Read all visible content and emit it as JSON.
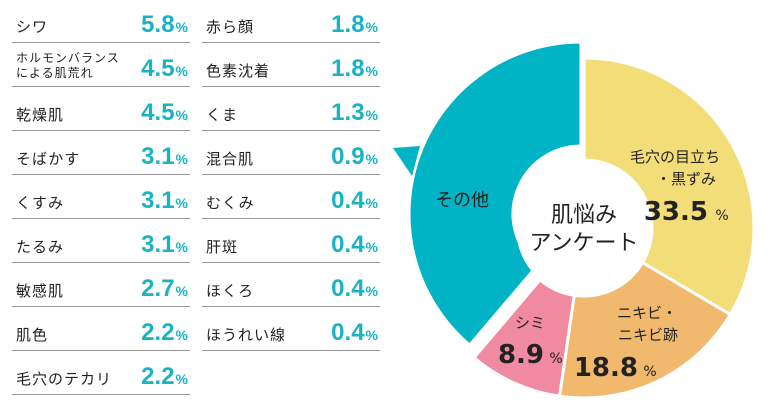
{
  "left_list": [
    {
      "label": "シワ",
      "value": "5.8",
      "unit": "%"
    },
    {
      "label": "ホルモンバランスによる肌荒れ",
      "line1": "ホルモンバランス",
      "line2": "による肌荒れ",
      "value": "4.5",
      "unit": "%"
    },
    {
      "label": "乾燥肌",
      "value": "4.5",
      "unit": "%"
    },
    {
      "label": "そばかす",
      "value": "3.1",
      "unit": "%"
    },
    {
      "label": "くすみ",
      "value": "3.1",
      "unit": "%"
    },
    {
      "label": "たるみ",
      "value": "3.1",
      "unit": "%"
    },
    {
      "label": "敏感肌",
      "value": "2.7",
      "unit": "%"
    },
    {
      "label": "肌色",
      "value": "2.2",
      "unit": "%"
    },
    {
      "label": "毛穴のテカリ",
      "value": "2.2",
      "unit": "%"
    }
  ],
  "right_list": [
    {
      "label": "赤ら顔",
      "value": "1.8",
      "unit": "%"
    },
    {
      "label": "色素沈着",
      "value": "1.8",
      "unit": "%"
    },
    {
      "label": "くま",
      "value": "1.3",
      "unit": "%"
    },
    {
      "label": "混合肌",
      "value": "0.9",
      "unit": "%"
    },
    {
      "label": "むくみ",
      "value": "0.4",
      "unit": "%"
    },
    {
      "label": "肝斑",
      "value": "0.4",
      "unit": "%"
    },
    {
      "label": "ほくろ",
      "value": "0.4",
      "unit": "%"
    },
    {
      "label": "ほうれい線",
      "value": "0.4",
      "unit": "%"
    }
  ],
  "chart_data": {
    "type": "pie",
    "variant": "donut",
    "center_title_line1": "肌悩み",
    "center_title_line2": "アンケート",
    "slices": [
      {
        "name_line1": "毛穴の目立ち",
        "name_line2": "・黒ずみ",
        "value": 33.5,
        "label": "33.5",
        "color": "#f3dd78"
      },
      {
        "name_line1": "ニキビ・",
        "name_line2": "ニキビ跡",
        "value": 18.8,
        "label": "18.8",
        "color": "#f1b96e"
      },
      {
        "name_line1": "シミ",
        "name_line2": "",
        "value": 8.9,
        "label": "8.9",
        "color": "#f08aa0"
      },
      {
        "name_line1": "その他",
        "name_line2": "",
        "value": 38.8,
        "color": "#00b4c5",
        "exploded": true
      }
    ],
    "unit": "%",
    "accent_color": "#19b3c3"
  }
}
